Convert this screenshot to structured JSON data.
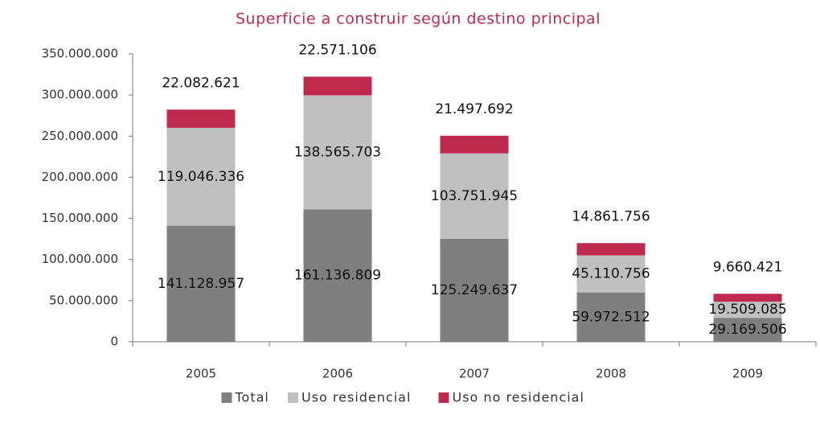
{
  "chart_data": {
    "type": "stacked_bar",
    "title": "Superficie a construir según destino principal",
    "categories": [
      "2005",
      "2006",
      "2007",
      "2008",
      "2009"
    ],
    "series": [
      {
        "name": "Total",
        "color": "#7f7f7f",
        "values": [
          141128957,
          161136809,
          125249637,
          59972512,
          29169506
        ],
        "value_labels": [
          "141.128.957",
          "161.136.809",
          "125.249.637",
          "59.972.512",
          "29.169.506"
        ]
      },
      {
        "name": "Uso residencial",
        "color": "#c0c0c0",
        "values": [
          119046336,
          138565703,
          103751945,
          45110756,
          19509085
        ],
        "value_labels": [
          "119.046.336",
          "138.565.703",
          "103.751.945",
          "45.110.756",
          "19.509.085"
        ]
      },
      {
        "name": "Uso no residencial",
        "color": "#be2a4e",
        "values": [
          22082621,
          22571106,
          21497692,
          14861756,
          9660421
        ],
        "value_labels": [
          "22.082.621",
          "22.571.106",
          "21.497.692",
          "14.861.756",
          "9.660.421"
        ]
      }
    ],
    "ylim": [
      0,
      350000000
    ],
    "yticks": [
      0,
      {
        "value": 50000000,
        "label": "50.000.000"
      },
      {
        "value": 100000000,
        "label": "100.000.000"
      },
      {
        "value": 150000000,
        "label": "150.000.000"
      },
      {
        "value": 200000000,
        "label": "200.000.000"
      },
      {
        "value": 250000000,
        "label": "250.000.000"
      },
      {
        "value": 300000000,
        "label": "300.000.000"
      },
      {
        "value": 350000000,
        "label": "350.000.000"
      }
    ],
    "legend": "bottom"
  }
}
